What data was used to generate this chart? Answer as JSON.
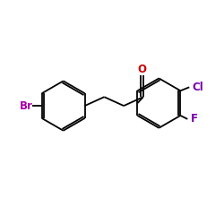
{
  "bg_color": "#ffffff",
  "bond_color": "#000000",
  "figsize": [
    2.5,
    2.5
  ],
  "dpi": 100,
  "br_label": "Br",
  "br_color": "#aa00aa",
  "cl_label": "Cl",
  "cl_color": "#7700aa",
  "f_label": "F",
  "f_color": "#7700aa",
  "o_label": "O",
  "o_color": "#cc0000",
  "font_size_atom": 8.5,
  "lw": 1.3
}
